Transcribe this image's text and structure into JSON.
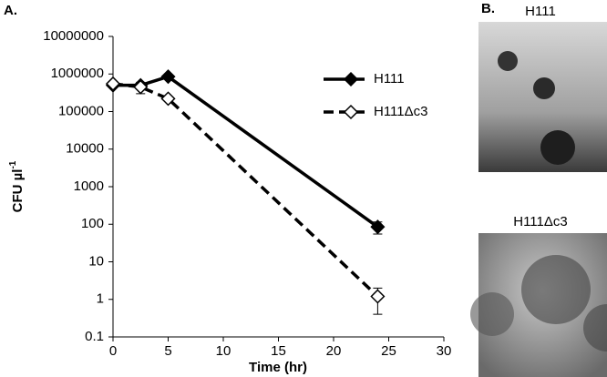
{
  "panel_labels": [
    "A.",
    "B."
  ],
  "images": [
    {
      "label": "H111"
    },
    {
      "label": "H111Δc3"
    }
  ],
  "chart_data": {
    "type": "line",
    "xlabel": "Time (hr)",
    "ylabel": "CFU µl",
    "ylabel_sup": "-1",
    "x": [
      0,
      2.5,
      5,
      24
    ],
    "series": [
      {
        "name": "H111",
        "color": "#000000",
        "marker": "filled-diamond",
        "dash": false,
        "values": [
          500000,
          500000,
          850000,
          85
        ],
        "errors": [
          0,
          80000,
          0,
          30
        ]
      },
      {
        "name": "H111Δc3",
        "color": "#000000",
        "marker": "open-diamond",
        "dash": true,
        "values": [
          550000,
          450000,
          220000,
          1.2
        ],
        "errors": [
          0,
          150000,
          0,
          0.8
        ]
      }
    ],
    "xlim": [
      0,
      30
    ],
    "xticks": [
      0,
      5,
      10,
      15,
      20,
      25,
      30
    ],
    "ylim": [
      0.1,
      10000000
    ],
    "yticks": [
      0.1,
      1,
      10,
      100,
      1000,
      10000,
      100000,
      1000000,
      10000000
    ],
    "ylog": true,
    "legend": "upper right"
  }
}
